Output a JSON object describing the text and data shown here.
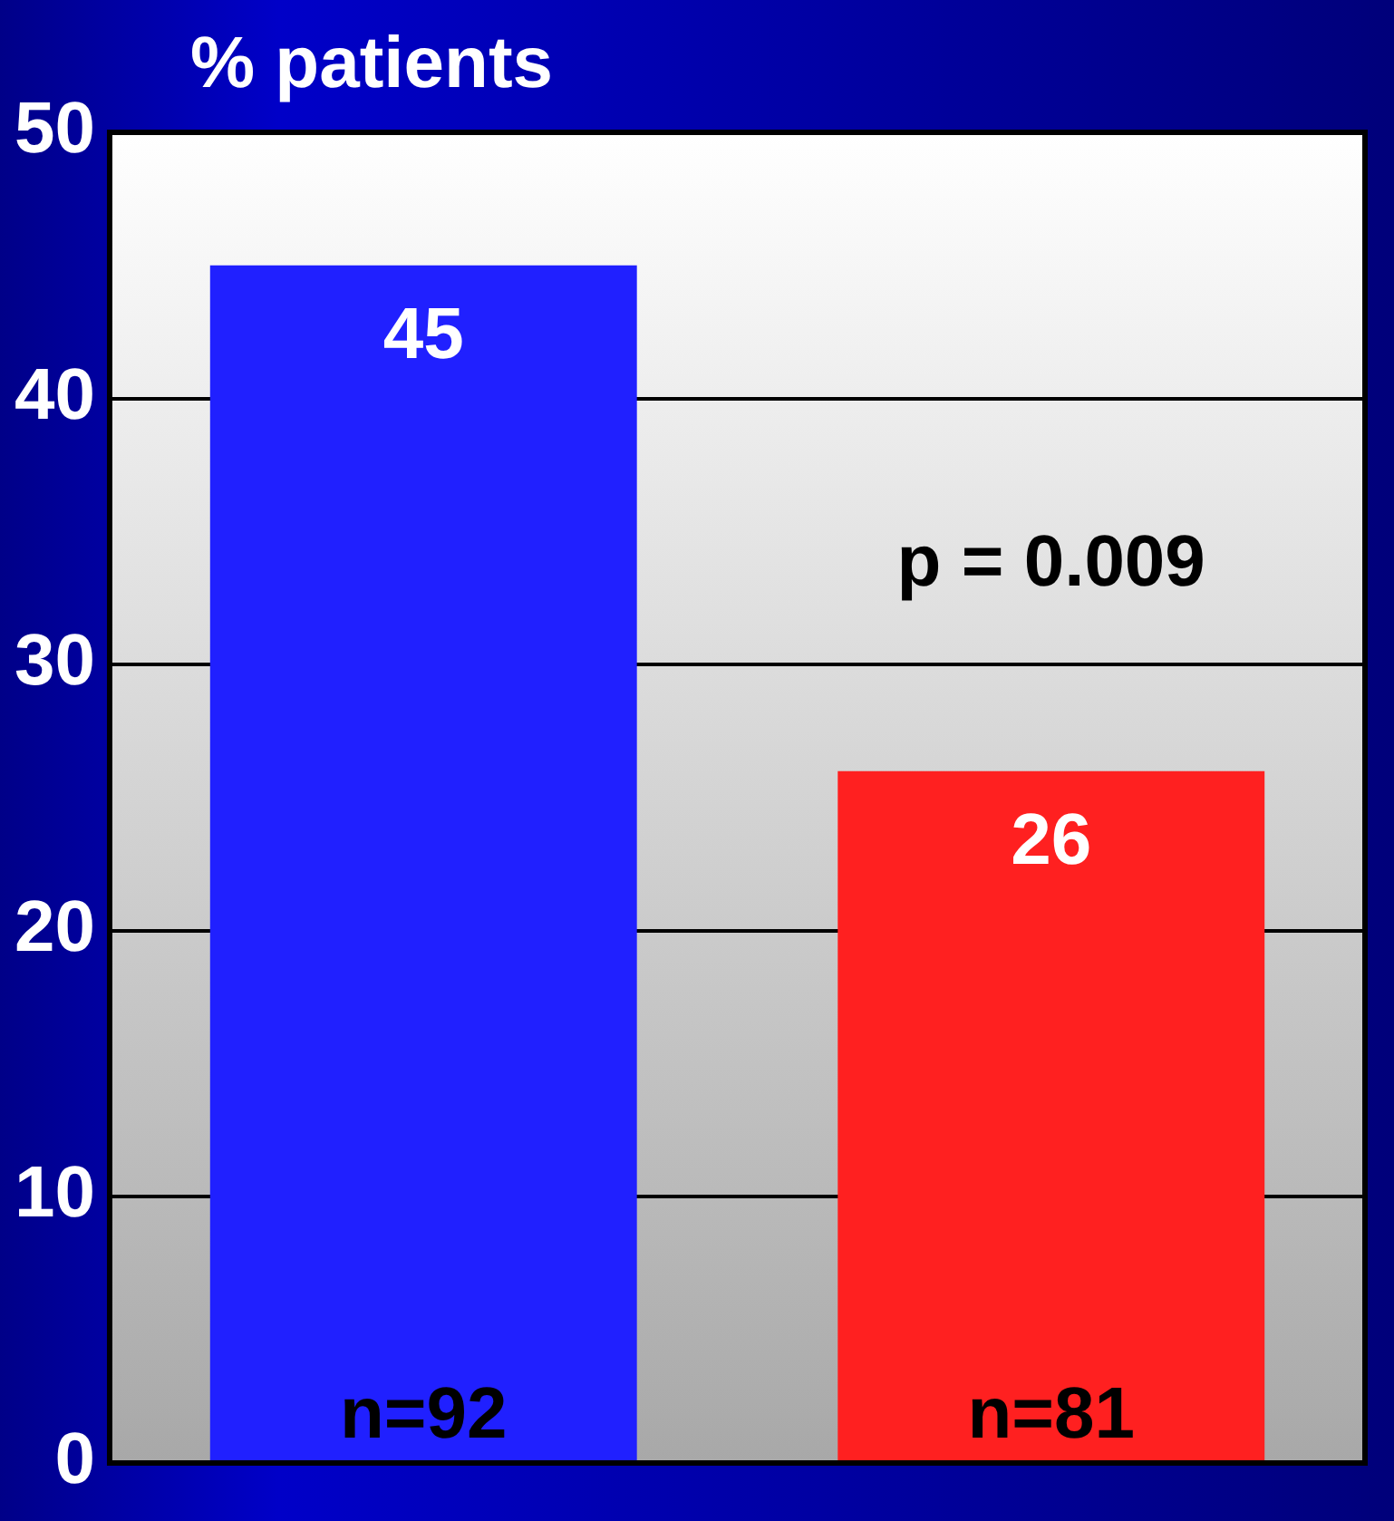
{
  "chart_data": {
    "type": "bar",
    "ylabel": "% patients",
    "categories": [
      null,
      null
    ],
    "values": [
      45,
      26
    ],
    "colors": [
      "#2020ff",
      "#ff2020"
    ],
    "ylim": [
      0,
      50
    ],
    "yticks": [
      0,
      10,
      20,
      30,
      40,
      50
    ],
    "grid": "y",
    "legend": false,
    "data_labels": true,
    "annotations": [
      "p = 0.009",
      "n=92",
      "n=81"
    ]
  }
}
